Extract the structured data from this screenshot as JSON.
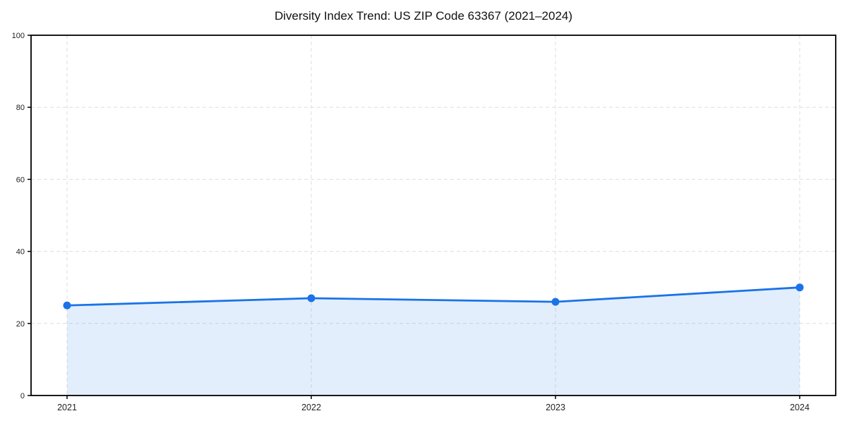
{
  "page": {
    "title": "Diversity Index Trend: US ZIP Code 63367 (2021–2024)"
  },
  "chart_data": {
    "type": "area",
    "title": "Diversity Index Trend: US ZIP Code 63367 (2021–2024)",
    "categories": [
      "2021",
      "2022",
      "2023",
      "2024"
    ],
    "series": [
      {
        "name": "Diversity Index",
        "values": [
          25,
          27,
          26,
          30
        ]
      }
    ],
    "xlabel": "",
    "ylabel": "",
    "ylim": [
      0,
      100
    ],
    "y_ticks": [
      0,
      20,
      40,
      60,
      80,
      100
    ],
    "grid": true,
    "grid_style": "dashed",
    "legend_position": "none",
    "colors": {
      "line": "#1a73e8",
      "marker": "#1a73e8",
      "area_fill": "rgba(26,115,232,0.12)",
      "grid": "#dedede",
      "spine": "#000000",
      "tick_label": "#222222",
      "background": "#ffffff"
    }
  }
}
